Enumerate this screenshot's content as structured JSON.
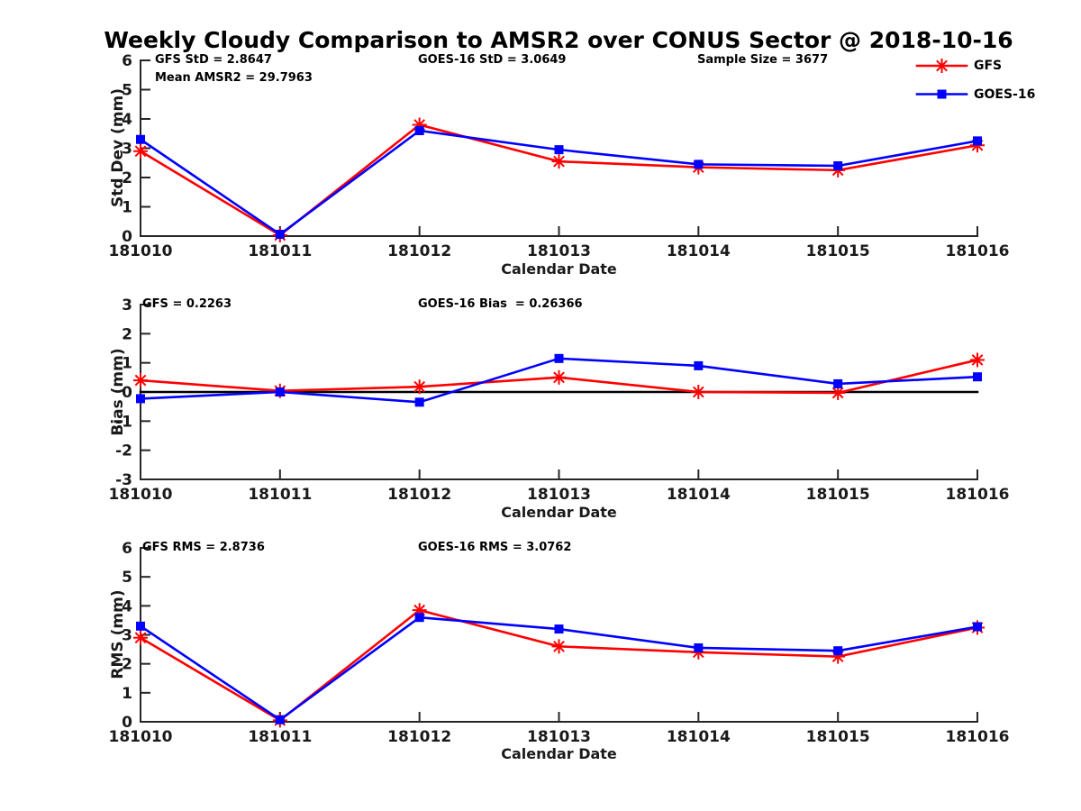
{
  "title": "Weekly Cloudy Comparison to AMSR2 over CONUS Sector @ 2018-10-16",
  "colors": {
    "gfs": "#ff0000",
    "goes16": "#0000ff",
    "axis": "#262626",
    "zero_line": "#000000",
    "background": "#ffffff"
  },
  "legend": {
    "position": "top-right",
    "items": [
      {
        "label": "GFS",
        "color": "#ff0000",
        "marker": "asterisk"
      },
      {
        "label": "GOES-16",
        "color": "#0000ff",
        "marker": "square"
      }
    ]
  },
  "chart_data": [
    {
      "type": "line",
      "ylabel": "Std Dev (mm)",
      "xlabel": "Calendar Date",
      "ylim": [
        0,
        6
      ],
      "yticks": [
        0,
        1,
        2,
        3,
        4,
        5,
        6
      ],
      "grid": false,
      "zero_line": false,
      "categories": [
        "181010",
        "181011",
        "181012",
        "181013",
        "181014",
        "181015",
        "181016"
      ],
      "series": [
        {
          "name": "GFS",
          "color": "#ff0000",
          "marker": "asterisk",
          "values": [
            2.9,
            0.03,
            3.8,
            2.55,
            2.35,
            2.25,
            3.1
          ]
        },
        {
          "name": "GOES-16",
          "color": "#0000ff",
          "marker": "square",
          "values": [
            3.3,
            0.06,
            3.6,
            2.95,
            2.45,
            2.4,
            3.25
          ]
        }
      ],
      "annotations": [
        {
          "text": "GFS StD = 2.8647"
        },
        {
          "text": "Mean AMSR2 = 29.7963"
        },
        {
          "text": "GOES-16 StD = 3.0649"
        },
        {
          "text": "Sample Size = 3677"
        }
      ]
    },
    {
      "type": "line",
      "ylabel": "Bias (mm)",
      "xlabel": "Calendar Date",
      "ylim": [
        -3,
        3
      ],
      "yticks": [
        3,
        2,
        1,
        0,
        -1,
        -2,
        -3
      ],
      "grid": false,
      "zero_line": true,
      "categories": [
        "181010",
        "181011",
        "181012",
        "181013",
        "181014",
        "181015",
        "181016"
      ],
      "series": [
        {
          "name": "GFS",
          "color": "#ff0000",
          "marker": "asterisk",
          "values": [
            0.4,
            0.04,
            0.18,
            0.5,
            0.0,
            -0.03,
            1.1
          ]
        },
        {
          "name": "GOES-16",
          "color": "#0000ff",
          "marker": "square",
          "values": [
            -0.23,
            0.0,
            -0.35,
            1.15,
            0.9,
            0.28,
            0.52
          ]
        }
      ],
      "annotations": [
        {
          "text": "GFS = 0.2263"
        },
        {
          "text": "GOES-16 Bias  = 0.26366"
        }
      ]
    },
    {
      "type": "line",
      "ylabel": "RMS (mm)",
      "xlabel": "Calendar Date",
      "ylim": [
        0,
        6
      ],
      "yticks": [
        0,
        1,
        2,
        3,
        4,
        5,
        6
      ],
      "grid": false,
      "zero_line": false,
      "categories": [
        "181010",
        "181011",
        "181012",
        "181013",
        "181014",
        "181015",
        "181016"
      ],
      "series": [
        {
          "name": "GFS",
          "color": "#ff0000",
          "marker": "asterisk",
          "values": [
            2.9,
            0.05,
            3.85,
            2.6,
            2.4,
            2.25,
            3.25
          ]
        },
        {
          "name": "GOES-16",
          "color": "#0000ff",
          "marker": "square",
          "values": [
            3.3,
            0.07,
            3.6,
            3.2,
            2.55,
            2.45,
            3.28
          ]
        }
      ],
      "annotations": [
        {
          "text": "GFS RMS = 2.8736"
        },
        {
          "text": "GOES-16 RMS = 3.0762"
        }
      ]
    }
  ]
}
